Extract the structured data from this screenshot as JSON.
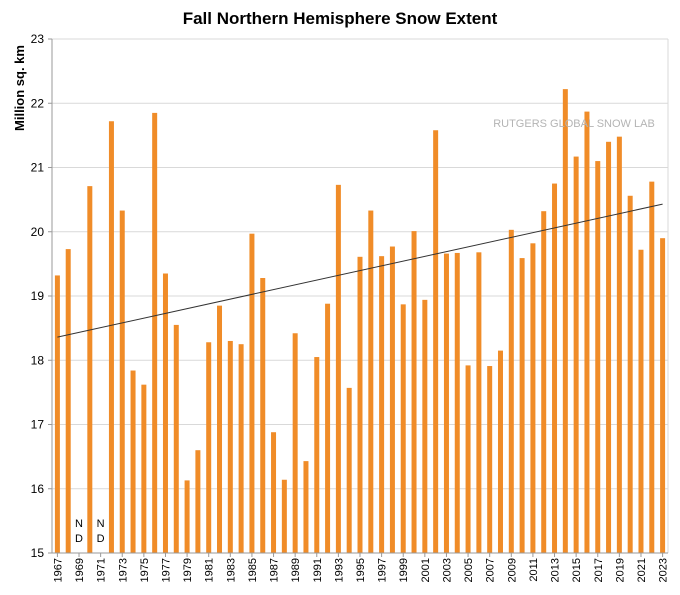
{
  "colors": {
    "bar": "#f08c28",
    "grid": "#d9d9d9",
    "trend": "#333333",
    "axis": "#999999"
  },
  "chart_data": {
    "type": "bar",
    "title": "Fall Northern Hemisphere Snow Extent",
    "ylabel": "Million sq. km",
    "xlabel": "",
    "ylim": [
      15,
      23
    ],
    "yticks": [
      15,
      16,
      17,
      18,
      19,
      20,
      21,
      22,
      23
    ],
    "grid": true,
    "watermark": "RUTGERS GLOBAL SNOW LAB",
    "no_data_marker": [
      "N",
      "D"
    ],
    "x_tick_labels": [
      "1967",
      "1969",
      "1971",
      "1973",
      "1975",
      "1977",
      "1979",
      "1981",
      "1983",
      "1985",
      "1987",
      "1989",
      "1991",
      "1993",
      "1995",
      "1997",
      "1999",
      "2001",
      "2003",
      "2005",
      "2007",
      "2009",
      "2011",
      "2013",
      "2015",
      "2017",
      "2019",
      "2021",
      "2023"
    ],
    "categories": [
      "1967",
      "1968",
      "1969",
      "1970",
      "1971",
      "1972",
      "1973",
      "1974",
      "1975",
      "1976",
      "1977",
      "1978",
      "1979",
      "1980",
      "1981",
      "1982",
      "1983",
      "1984",
      "1985",
      "1986",
      "1987",
      "1988",
      "1989",
      "1990",
      "1991",
      "1992",
      "1993",
      "1994",
      "1995",
      "1996",
      "1997",
      "1998",
      "1999",
      "2000",
      "2001",
      "2002",
      "2003",
      "2004",
      "2005",
      "2006",
      "2007",
      "2008",
      "2009",
      "2010",
      "2011",
      "2012",
      "2013",
      "2014",
      "2015",
      "2016",
      "2017",
      "2018",
      "2019",
      "2020",
      "2021",
      "2022",
      "2023"
    ],
    "values": [
      19.32,
      19.73,
      null,
      20.71,
      null,
      21.72,
      20.33,
      17.84,
      17.62,
      21.85,
      19.35,
      18.55,
      16.13,
      16.6,
      18.28,
      18.85,
      18.3,
      18.25,
      19.97,
      19.28,
      16.88,
      16.14,
      18.42,
      16.43,
      18.05,
      18.88,
      20.73,
      17.57,
      19.61,
      20.33,
      19.62,
      19.77,
      18.87,
      20.01,
      18.94,
      21.58,
      19.66,
      19.67,
      17.92,
      19.68,
      17.91,
      18.15,
      20.03,
      19.59,
      19.82,
      20.32,
      20.75,
      22.22,
      21.17,
      21.87,
      21.1,
      21.4,
      21.48,
      20.56,
      19.72,
      20.78,
      19.9
    ],
    "trend_line": {
      "start": 18.36,
      "end": 20.43
    }
  }
}
